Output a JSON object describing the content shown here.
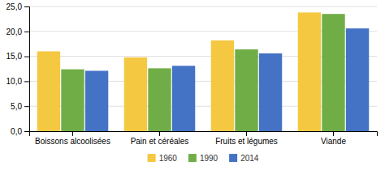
{
  "chart_data": {
    "type": "bar",
    "categories": [
      "Boissons alcoolisées",
      "Pain et céréales",
      "Fruits et légumes",
      "Viande"
    ],
    "series": [
      {
        "name": "1960",
        "color": "#F5C842",
        "values": [
          16.0,
          14.8,
          18.2,
          23.8
        ]
      },
      {
        "name": "1990",
        "color": "#70AD47",
        "values": [
          12.4,
          12.6,
          16.4,
          23.5
        ]
      },
      {
        "name": "2014",
        "color": "#4472C4",
        "values": [
          12.1,
          13.1,
          15.6,
          20.6
        ]
      }
    ],
    "ylim": [
      0,
      25
    ],
    "yticks": [
      {
        "value": 0,
        "label": "0,0"
      },
      {
        "value": 5,
        "label": "5,0"
      },
      {
        "value": 10,
        "label": "10,0"
      },
      {
        "value": 15,
        "label": "15,0"
      },
      {
        "value": 20,
        "label": "20,0"
      },
      {
        "value": 25,
        "label": "25,0"
      }
    ],
    "grid": true,
    "legend": "bottom"
  }
}
